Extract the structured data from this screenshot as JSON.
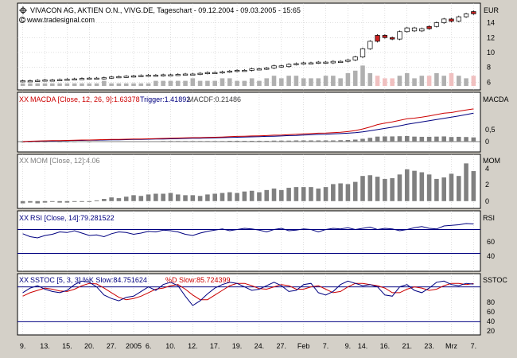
{
  "header": {
    "title": "VIVACON AG, AKTIEN O.N., VIVG.DE, Tageschart - 09.12.2004 - 09.03.2005 - 15:65",
    "watermark": "www.tradesignal.com",
    "currency": "EUR"
  },
  "colors": {
    "background": "#d4d0c8",
    "panel": "#ffffff",
    "grid": "#c0c0c0",
    "candle_up": "#ffffff",
    "candle_down": "#cc2222",
    "volume_up": "#b0b0b0",
    "volume_down": "#f0c0c0",
    "macd_line": "#cc0000",
    "trigger_line": "#000080",
    "macdf_bars": "#808080",
    "mom_bars": "#808080",
    "rsi_line": "#000080",
    "level_line": "#000080",
    "k_line": "#000080",
    "d_line": "#cc0000",
    "marker": "#cc0000"
  },
  "panels": {
    "macd": {
      "marker": "XX",
      "label": "MACDA [Close, 12, 26, 9]:1.63378",
      "trigger": "Trigger:1.41892",
      "macdf": "MACDF:0.21486",
      "right_label": "MACDA",
      "ticks": [
        "0,5",
        "0"
      ]
    },
    "mom": {
      "marker": "XX",
      "label": "MOM [Close, 12]:4.06",
      "right_label": "MOM",
      "ticks": [
        "4",
        "2",
        "0"
      ]
    },
    "rsi": {
      "marker": "XX",
      "label": "RSI [Close, 14]:79.281522",
      "right_label": "RSI",
      "ticks": [
        "60",
        "40"
      ]
    },
    "sstoc": {
      "marker": "XX",
      "label": "SSTOC [5, 3, 3] %K Slow:84.751624",
      "d_label": "%D Slow:85.724399",
      "right_label": "SSTOC",
      "ticks": [
        "80",
        "60",
        "40",
        "20"
      ]
    }
  },
  "chart_data": {
    "type": "candlestick",
    "x_tick_labels": [
      "9.",
      "13.",
      "15.",
      "20.",
      "27.",
      "2005",
      "6.",
      "10.",
      "12.",
      "17.",
      "19.",
      "24.",
      "27.",
      "Feb",
      "7.",
      "9.",
      "14.",
      "16.",
      "21.",
      "23.",
      "Mrz",
      "7."
    ],
    "price_axis_ticks": [
      14,
      12,
      10,
      8,
      6
    ],
    "price_range": [
      5.5,
      16.2
    ],
    "close": [
      6.2,
      6.2,
      6.25,
      6.3,
      6.3,
      6.35,
      6.4,
      6.45,
      6.5,
      6.55,
      6.5,
      6.6,
      6.7,
      6.75,
      6.8,
      6.85,
      6.9,
      6.95,
      6.9,
      7.0,
      7.0,
      7.05,
      7.1,
      7.1,
      7.2,
      7.3,
      7.3,
      7.4,
      7.5,
      7.6,
      7.6,
      7.8,
      7.8,
      7.9,
      8.2,
      8.1,
      8.4,
      8.5,
      8.6,
      8.6,
      8.7,
      8.6,
      8.8,
      8.8,
      9.0,
      9.4,
      10.5,
      11.5,
      12.3,
      12.0,
      11.8,
      12.8,
      13.3,
      12.9,
      13.2,
      13.5,
      14.0,
      14.5,
      14.2,
      14.8,
      15.2,
      15.5
    ],
    "down_day_index": [
      48,
      49,
      50,
      55,
      58,
      61
    ],
    "volume_relative": [
      1,
      1,
      1,
      1,
      1,
      1,
      1,
      1,
      1,
      1,
      1,
      2,
      1,
      1,
      1,
      1,
      1,
      1,
      2,
      2,
      2,
      2,
      2,
      3,
      2,
      2,
      2,
      3,
      3,
      2,
      2,
      3,
      2,
      3,
      4,
      3,
      4,
      4,
      3,
      3,
      3,
      4,
      4,
      3,
      5,
      6,
      8,
      5,
      4,
      3,
      3,
      4,
      5,
      3,
      4,
      4,
      5,
      4,
      5,
      4,
      3,
      4
    ],
    "macd": [
      0.0,
      0.02,
      0.03,
      0.04,
      0.05,
      0.05,
      0.06,
      0.07,
      0.08,
      0.08,
      0.09,
      0.1,
      0.11,
      0.11,
      0.12,
      0.13,
      0.13,
      0.14,
      0.15,
      0.16,
      0.17,
      0.18,
      0.19,
      0.2,
      0.2,
      0.21,
      0.22,
      0.23,
      0.25,
      0.26,
      0.27,
      0.28,
      0.29,
      0.3,
      0.32,
      0.33,
      0.35,
      0.37,
      0.39,
      0.4,
      0.42,
      0.43,
      0.45,
      0.47,
      0.5,
      0.55,
      0.63,
      0.73,
      0.85,
      0.92,
      0.98,
      1.06,
      1.14,
      1.17,
      1.22,
      1.28,
      1.35,
      1.42,
      1.45,
      1.52,
      1.58,
      1.63
    ],
    "trigger": [
      0.0,
      0.01,
      0.02,
      0.03,
      0.03,
      0.04,
      0.05,
      0.06,
      0.06,
      0.07,
      0.07,
      0.08,
      0.09,
      0.09,
      0.1,
      0.11,
      0.11,
      0.12,
      0.13,
      0.13,
      0.14,
      0.15,
      0.16,
      0.17,
      0.17,
      0.18,
      0.19,
      0.2,
      0.21,
      0.22,
      0.23,
      0.24,
      0.25,
      0.26,
      0.27,
      0.28,
      0.3,
      0.31,
      0.33,
      0.34,
      0.36,
      0.37,
      0.39,
      0.4,
      0.42,
      0.45,
      0.49,
      0.54,
      0.6,
      0.66,
      0.72,
      0.79,
      0.86,
      0.92,
      0.98,
      1.04,
      1.1,
      1.16,
      1.22,
      1.28,
      1.35,
      1.42
    ],
    "mom": [
      -0.3,
      -0.2,
      -0.3,
      -0.2,
      -0.1,
      -0.2,
      -0.2,
      -0.1,
      -0.1,
      -0.1,
      0.1,
      0.3,
      0.5,
      0.4,
      0.6,
      0.8,
      0.7,
      0.9,
      1.0,
      1.0,
      1.1,
      0.9,
      0.8,
      0.8,
      0.7,
      0.9,
      1.0,
      1.1,
      1.2,
      1.1,
      1.3,
      1.4,
      1.2,
      1.5,
      1.7,
      1.5,
      1.8,
      1.9,
      1.9,
      1.9,
      1.7,
      1.9,
      2.3,
      2.4,
      2.3,
      2.6,
      3.4,
      3.5,
      3.3,
      3.0,
      3.1,
      3.6,
      4.3,
      4.1,
      3.9,
      3.6,
      3.0,
      3.2,
      3.7,
      3.4,
      5.1,
      4.06
    ],
    "rsi": [
      63,
      58,
      56,
      60,
      62,
      66,
      65,
      68,
      64,
      60,
      61,
      58,
      63,
      66,
      65,
      62,
      64,
      67,
      66,
      69,
      68,
      66,
      62,
      60,
      64,
      67,
      69,
      71,
      68,
      70,
      72,
      71,
      69,
      66,
      70,
      72,
      68,
      69,
      71,
      70,
      66,
      70,
      72,
      71,
      73,
      70,
      72,
      74,
      70,
      72,
      71,
      68,
      70,
      73,
      75,
      72,
      71,
      76,
      77,
      78,
      80,
      79.28
    ],
    "stoch_k": [
      70,
      78,
      82,
      76,
      72,
      70,
      74,
      84,
      90,
      88,
      80,
      66,
      60,
      56,
      62,
      64,
      72,
      80,
      74,
      84,
      88,
      82,
      64,
      48,
      56,
      68,
      78,
      84,
      88,
      86,
      80,
      74,
      76,
      82,
      88,
      82,
      72,
      74,
      84,
      86,
      70,
      66,
      72,
      84,
      90,
      86,
      82,
      84,
      80,
      66,
      64,
      80,
      84,
      74,
      70,
      78,
      88,
      90,
      84,
      82,
      86,
      84.75
    ],
    "stoch_d": [
      64,
      70,
      74,
      78,
      76,
      73,
      72,
      76,
      82,
      86,
      85,
      78,
      70,
      62,
      58,
      60,
      64,
      70,
      76,
      78,
      82,
      84,
      76,
      66,
      58,
      58,
      66,
      74,
      82,
      86,
      86,
      82,
      77,
      76,
      80,
      84,
      82,
      76,
      76,
      80,
      82,
      76,
      70,
      72,
      80,
      86,
      86,
      84,
      82,
      78,
      70,
      70,
      76,
      80,
      78,
      74,
      76,
      82,
      86,
      86,
      84,
      85.72
    ],
    "rsi_levels": [
      70,
      30
    ],
    "stoch_levels": [
      80,
      20
    ]
  }
}
